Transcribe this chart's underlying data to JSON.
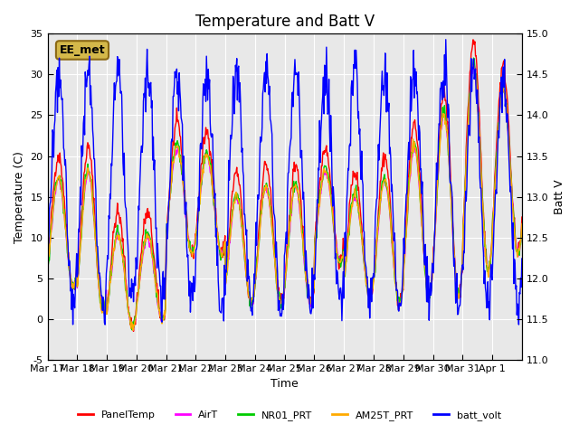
{
  "title": "Temperature and Batt V",
  "xlabel": "Time",
  "ylabel_left": "Temperature (C)",
  "ylabel_right": "Batt V",
  "ylim_left": [
    -5,
    35
  ],
  "ylim_right": [
    11.0,
    15.0
  ],
  "annotation": "EE_met",
  "xtick_labels": [
    "Mar 17",
    "Mar 18",
    "Mar 19",
    "Mar 20",
    "Mar 21",
    "Mar 22",
    "Mar 23",
    "Mar 24",
    "Mar 25",
    "Mar 26",
    "Mar 27",
    "Mar 28",
    "Mar 29",
    "Mar 30",
    "Mar 31",
    "Apr 1"
  ],
  "yticks_left": [
    -5,
    0,
    5,
    10,
    15,
    20,
    25,
    30,
    35
  ],
  "yticks_right": [
    11.0,
    11.5,
    12.0,
    12.5,
    13.0,
    13.5,
    14.0,
    14.5,
    15.0
  ],
  "series_colors": {
    "PanelTemp": "#ff0000",
    "AirT": "#ff00ff",
    "NR01_PRT": "#00cc00",
    "AM25T_PRT": "#ffaa00",
    "batt_volt": "#0000ff"
  },
  "legend_colors": [
    "#ff0000",
    "#ff00ff",
    "#00cc00",
    "#ffaa00",
    "#0000ff"
  ],
  "legend_labels": [
    "PanelTemp",
    "AirT",
    "NR01_PRT",
    "AM25T_PRT",
    "batt_volt"
  ],
  "annotation_bg": "#d4b84a",
  "annotation_border": "#8b6914",
  "plot_bg": "#e8e8e8",
  "fig_bg": "#ffffff",
  "grid_color": "#ffffff",
  "title_fontsize": 12,
  "axis_fontsize": 9,
  "tick_fontsize": 8,
  "line_lw": 1.0
}
